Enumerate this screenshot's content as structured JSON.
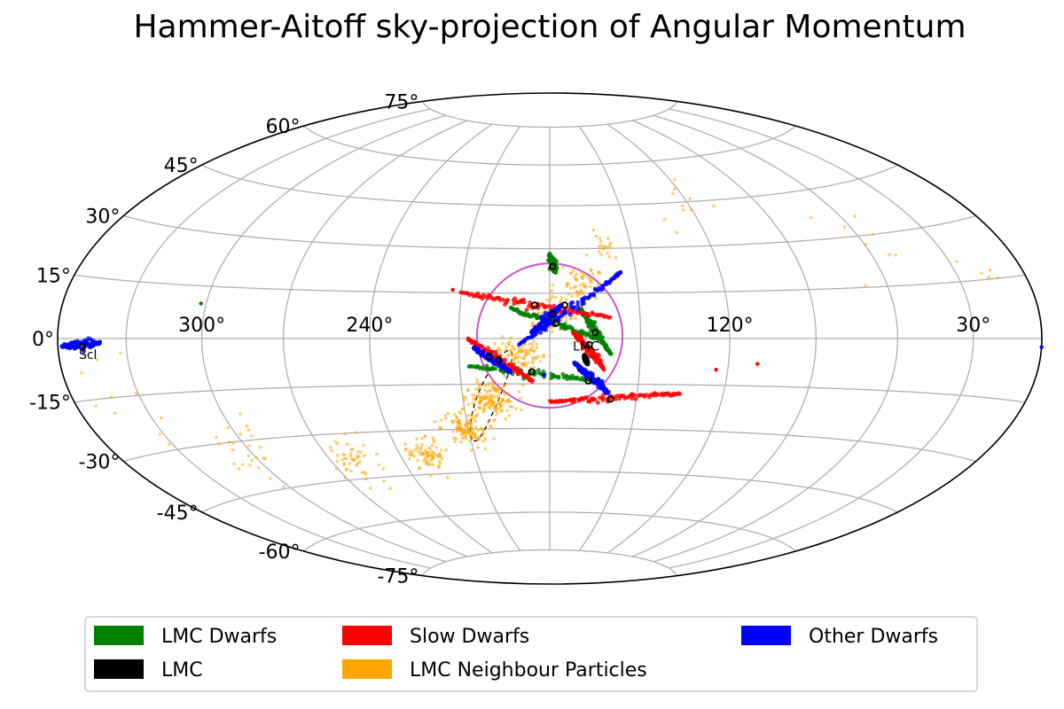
{
  "chart_data": {
    "type": "scatter",
    "projection": "hammer",
    "title": "Hammer-Aitoff sky-projection of Angular Momentum",
    "grid": true,
    "lon_ticks": [
      {
        "lon": 300,
        "label": "300°"
      },
      {
        "lon": 240,
        "label": "240°"
      },
      {
        "lon": 120,
        "label": "120°"
      },
      {
        "lon": 30,
        "label": "30°"
      }
    ],
    "lat_ticks": [
      {
        "lat": 75,
        "label": "75°"
      },
      {
        "lat": 60,
        "label": "60°"
      },
      {
        "lat": 45,
        "label": "45°"
      },
      {
        "lat": 30,
        "label": "30°"
      },
      {
        "lat": 15,
        "label": "15°"
      },
      {
        "lat": 0,
        "label": "0°"
      },
      {
        "lat": -15,
        "label": "-15°"
      },
      {
        "lat": -30,
        "label": "-30°"
      },
      {
        "lat": -45,
        "label": "-45°"
      },
      {
        "lat": -60,
        "label": "-60°"
      },
      {
        "lat": -75,
        "label": "-75°"
      }
    ],
    "legend": {
      "position": "bottom",
      "entries": [
        {
          "label": "LMC Dwarfs",
          "color": "#008000"
        },
        {
          "label": "Slow Dwarfs",
          "color": "#ff0000"
        },
        {
          "label": "Other Dwarfs",
          "color": "#0000ff"
        },
        {
          "label": "LMC",
          "color": "#000000"
        },
        {
          "label": "LMC Neighbour Particles",
          "color": "#ffa500"
        }
      ]
    },
    "annotations": [
      {
        "text": "Scl",
        "lon": 347,
        "lat": -5
      },
      {
        "text": "LMC",
        "lon": 168,
        "lat": -4
      }
    ],
    "circle_region": {
      "color": "#cc55cc",
      "center_lon": 180,
      "center_lat": 1,
      "radius_deg": 24
    },
    "dashed_ellipse": {
      "center_lon": 201,
      "center_lat": -19,
      "semi_major_deg": 17,
      "semi_minor_deg": 3.5,
      "tilt_deg": 62
    },
    "streaks": [
      {
        "series": "LMC Dwarfs",
        "lon0": 180,
        "lat0": 28,
        "lon1": 178,
        "lat1": 22,
        "marker_lon": 179,
        "marker_lat": 24
      },
      {
        "series": "LMC Dwarfs",
        "lon0": 193,
        "lat0": 10,
        "lon1": 164,
        "lat1": 0,
        "marker_lon": 178,
        "marker_lat": 5
      },
      {
        "series": "LMC Dwarfs",
        "lon0": 207,
        "lat0": -9,
        "lon1": 163,
        "lat1": -14,
        "marker_lon": 186,
        "marker_lat": -11
      },
      {
        "series": "LMC Dwarfs",
        "lon0": 170,
        "lat0": 10,
        "lon1": 160,
        "lat1": -5,
        "marker_lon": 165,
        "marker_lat": 2
      },
      {
        "series": "Slow Dwarfs",
        "lon0": 210,
        "lat0": 15,
        "lon1": 160,
        "lat1": 7,
        "marker_lon": 185,
        "marker_lat": 11
      },
      {
        "series": "Slow Dwarfs",
        "lon0": 207,
        "lat0": 0,
        "lon1": 186,
        "lat1": -14,
        "marker_lon": 197,
        "marker_lat": -7
      },
      {
        "series": "Slow Dwarfs",
        "lon0": 172,
        "lat0": 2,
        "lon1": 162,
        "lat1": -10,
        "marker_lon": 167,
        "marker_lat": -2
      },
      {
        "series": "Slow Dwarfs",
        "lon0": 180,
        "lat0": -21,
        "lon1": 135,
        "lat1": -18,
        "marker_lon": 159,
        "marker_lat": -20
      },
      {
        "series": "Other Dwarfs",
        "lon0": 190,
        "lat0": -2,
        "lon1": 155,
        "lat1": 22,
        "marker_lon": 175,
        "marker_lat": 11
      },
      {
        "series": "Other Dwarfs",
        "lon0": 205,
        "lat0": -3,
        "lon1": 193,
        "lat1": -11,
        "marker_lon": 200,
        "marker_lat": -6
      },
      {
        "series": "Other Dwarfs",
        "lon0": 172,
        "lat0": -8,
        "lon1": 160,
        "lat1": -18,
        "marker_lon": 167,
        "marker_lat": -14
      },
      {
        "series": "Other Dwarfs",
        "lon0": 358,
        "lat0": -2,
        "lon1": 341,
        "lat1": -1,
        "marker_lon": 349,
        "marker_lat": -2
      },
      {
        "series": "Other Dwarfs",
        "lon0": 186,
        "lat0": 2,
        "lon1": 176,
        "lat1": 11,
        "marker_lon": 179,
        "marker_lat": 8
      }
    ],
    "stray_points": [
      {
        "series": "LMC Dwarfs",
        "lon": 302,
        "lat": 10
      },
      {
        "series": "Other Dwarfs",
        "lon": 182,
        "lat": -12
      },
      {
        "series": "Other Dwarfs",
        "lon": 0,
        "lat": -2
      },
      {
        "series": "Slow Dwarfs",
        "lon": 213,
        "lat": 16
      },
      {
        "series": "Slow Dwarfs",
        "lon": 124,
        "lat": -10
      },
      {
        "series": "Slow Dwarfs",
        "lon": 110,
        "lat": -8
      }
    ],
    "lmc": {
      "lon": 168,
      "lat": -7
    },
    "neighbour_cloud": [
      {
        "lon": 160,
        "lat": 30,
        "n": 20,
        "spread": 3
      },
      {
        "lon": 170,
        "lat": 18,
        "n": 60,
        "spread": 4
      },
      {
        "lon": 180,
        "lat": 8,
        "n": 80,
        "spread": 4
      },
      {
        "lon": 190,
        "lat": -5,
        "n": 100,
        "spread": 4
      },
      {
        "lon": 200,
        "lat": -20,
        "n": 140,
        "spread": 4
      },
      {
        "lon": 210,
        "lat": -30,
        "n": 120,
        "spread": 4
      },
      {
        "lon": 230,
        "lat": -38,
        "n": 80,
        "spread": 4
      },
      {
        "lon": 260,
        "lat": -40,
        "n": 50,
        "spread": 5
      },
      {
        "lon": 300,
        "lat": -35,
        "n": 25,
        "spread": 7
      },
      {
        "lon": 335,
        "lat": -15,
        "n": 10,
        "spread": 8
      },
      {
        "lon": 120,
        "lat": 45,
        "n": 10,
        "spread": 8
      },
      {
        "lon": 60,
        "lat": 30,
        "n": 8,
        "spread": 8
      },
      {
        "lon": 20,
        "lat": 15,
        "n": 5,
        "spread": 5
      }
    ]
  }
}
